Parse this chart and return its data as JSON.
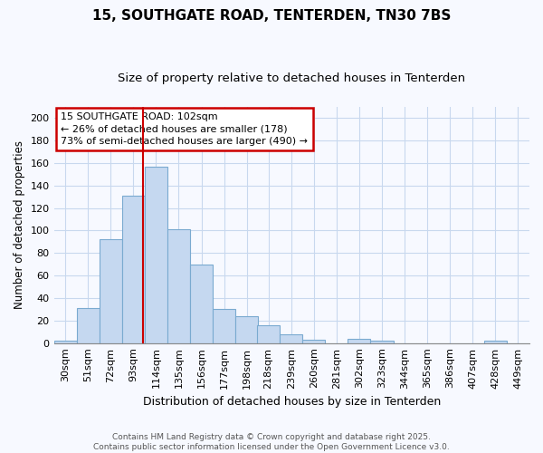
{
  "title": "15, SOUTHGATE ROAD, TENTERDEN, TN30 7BS",
  "subtitle": "Size of property relative to detached houses in Tenterden",
  "xlabel": "Distribution of detached houses by size in Tenterden",
  "ylabel": "Number of detached properties",
  "categories": [
    "30sqm",
    "51sqm",
    "72sqm",
    "93sqm",
    "114sqm",
    "135sqm",
    "156sqm",
    "177sqm",
    "198sqm",
    "218sqm",
    "239sqm",
    "260sqm",
    "281sqm",
    "302sqm",
    "323sqm",
    "344sqm",
    "365sqm",
    "386sqm",
    "407sqm",
    "428sqm",
    "449sqm"
  ],
  "values": [
    2,
    31,
    92,
    131,
    157,
    101,
    70,
    30,
    24,
    16,
    8,
    3,
    0,
    4,
    2,
    0,
    0,
    0,
    0,
    2,
    0
  ],
  "bar_color": "#c5d8f0",
  "bar_edge_color": "#7aaad0",
  "grid_color": "#c8d8ee",
  "background_color": "#f7f9ff",
  "annotation_text": "15 SOUTHGATE ROAD: 102sqm\n← 26% of detached houses are smaller (178)\n73% of semi-detached houses are larger (490) →",
  "annotation_box_color": "#ffffff",
  "annotation_box_edge_color": "#cc0000",
  "vline_color": "#cc0000",
  "ylim": [
    0,
    210
  ],
  "yticks": [
    0,
    20,
    40,
    60,
    80,
    100,
    120,
    140,
    160,
    180,
    200
  ],
  "footer_text": "Contains HM Land Registry data © Crown copyright and database right 2025.\nContains public sector information licensed under the Open Government Licence v3.0.",
  "title_fontsize": 11,
  "subtitle_fontsize": 9.5,
  "xlabel_fontsize": 9,
  "ylabel_fontsize": 8.5,
  "tick_fontsize": 8,
  "annotation_fontsize": 8,
  "footer_fontsize": 6.5
}
